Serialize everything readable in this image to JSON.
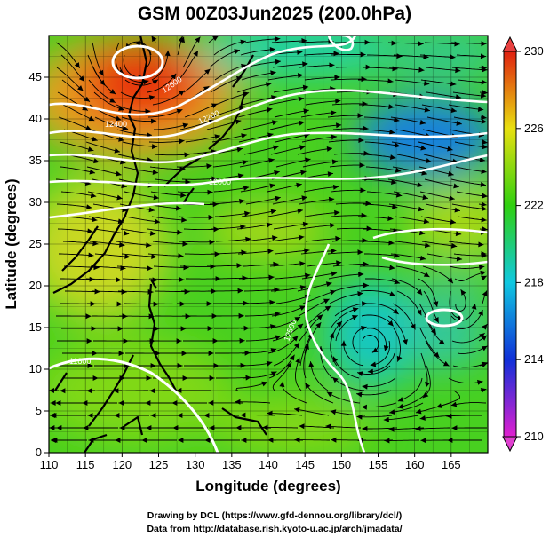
{
  "title": "GSM 00Z03Jun2025 (200.0hPa)",
  "xlabel": "Longitude (degrees)",
  "ylabel": "Latitude (degrees)",
  "x_ticks": [
    "110",
    "115",
    "120",
    "125",
    "130",
    "135",
    "140",
    "145",
    "150",
    "155",
    "160",
    "165"
  ],
  "y_ticks": [
    "0",
    "5",
    "10",
    "15",
    "20",
    "25",
    "30",
    "35",
    "40",
    "45"
  ],
  "colorbar_ticks": [
    "210",
    "214",
    "218",
    "222",
    "226",
    "230"
  ],
  "contour_labels": [
    "12600",
    "12400",
    "12200",
    "12000",
    "11800",
    "12500"
  ],
  "credits": {
    "line1": "Drawing by DCL (https://www.gfd-dennou.org/library/dcl/)",
    "line2": "Data from http://database.rish.kyoto-u.ac.jp/arch/jmadata/"
  },
  "map_data": {
    "type": "streamline-temperature-map",
    "field": "temperature (K) shaded, geopotential height contours (white), wind streamlines (black)",
    "lon_range": [
      110,
      170
    ],
    "lat_range": [
      0,
      50
    ],
    "colorbar_range": [
      210,
      230
    ],
    "colors": {
      "c210": "#e020d0",
      "c214": "#1030d8",
      "c218": "#10c8e0",
      "c222": "#30d010",
      "c226": "#e8e010",
      "c230": "#e02010",
      "contour": "#ffffff",
      "streamline": "#000000",
      "coast": "#000000"
    }
  }
}
